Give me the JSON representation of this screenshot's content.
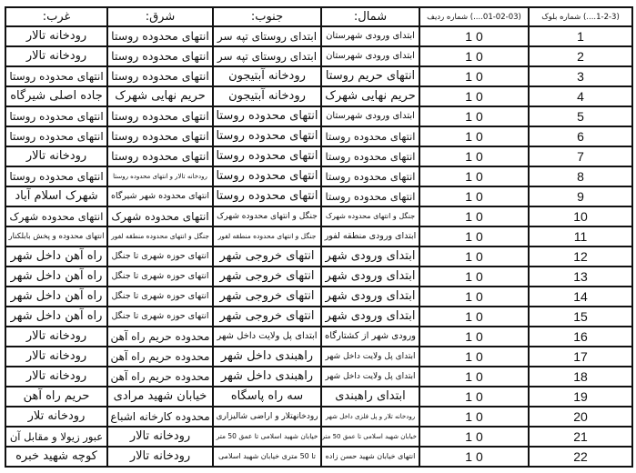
{
  "headers": {
    "block": "(1-2-3....) شماره بلوک",
    "row": "(01-02-03....) شماره ردیف",
    "north": "شمال:",
    "south": "جنوب:",
    "east": "شرق:",
    "west": "غرب:"
  },
  "rows": [
    {
      "block": "1",
      "row": "0 1",
      "north": "ابتدای ورودی شهرستان",
      "south": "ابتدای روستای تپه سر",
      "east": "انتهای محدوده روستا",
      "west": "رودخانه تالار"
    },
    {
      "block": "2",
      "row": "0 1",
      "north": "ابتدای ورودی شهرستان",
      "south": "ابتدای روستای تپه سر",
      "east": "انتهای محدوده روستا",
      "west": "رودخانه تالار"
    },
    {
      "block": "3",
      "row": "0 1",
      "north": "انتهای حریم روستا",
      "south": "رودخانه آبتیجون",
      "east": "انتهای محدوده روستا",
      "west": "انتهای محدوده روستا"
    },
    {
      "block": "4",
      "row": "0 1",
      "north": "حریم نهایی شهرک",
      "south": "رودخانه آبتیجون",
      "east": "حریم نهایی شهرک",
      "west": "جاده اصلی شیرگاه"
    },
    {
      "block": "5",
      "row": "0 1",
      "north": "ابتدای ورودی شهرستان",
      "south": "انتهای محدوده روستا",
      "east": "انتهای محدوده روستا",
      "west": "انتهای محدوده روستا"
    },
    {
      "block": "6",
      "row": "0 1",
      "north": "انتهای محدوده روستا",
      "south": "انتهای محدوده روستا",
      "east": "انتهای محدوده روستا",
      "west": "انتهای محدوده روستا"
    },
    {
      "block": "7",
      "row": "0 1",
      "north": "انتهای محدوده روستا",
      "south": "انتهای محدوده روستا",
      "east": "انتهای محدوده روستا",
      "west": "رودخانه تالار"
    },
    {
      "block": "8",
      "row": "0 1",
      "north": "انتهای محدوده روستا",
      "south": "انتهای محدوده روستا",
      "east": "رودخانه تالار و انتهای محدوده روستا",
      "west": "انتهای محدوده روستا"
    },
    {
      "block": "9",
      "row": "0 1",
      "north": "انتهای محدوده روستا",
      "south": "انتهای محدوده روستا",
      "east": "انتهای محدوده شهر شیرگاه",
      "west": "شهرک اسلام آباد"
    },
    {
      "block": "10",
      "row": "0 1",
      "north": "جنگل و انتهای محدوده شهرک",
      "south": "جنگل و انتهای محدوده شهرک",
      "east": "انتهای محدوده شهرک",
      "west": "انتهای محدوده شهرک"
    },
    {
      "block": "11",
      "row": "0 1",
      "north": "ابتدای ورودی منطقه لفور",
      "south": "جنگل و انتهای محدوده منطقه لفور",
      "east": "جنگل و انتهای محدوده منطقه لفور",
      "west": "انتهای محدوده و پخش بابلکنار"
    },
    {
      "block": "12",
      "row": "0 1",
      "north": "ابتدای ورودی شهر",
      "south": "انتهای خروجی شهر",
      "east": "انتهای حوزه شهری تا جنگل",
      "west": "راه آهن داخل شهر"
    },
    {
      "block": "13",
      "row": "0 1",
      "north": "ابتدای ورودی شهر",
      "south": "انتهای خروجی شهر",
      "east": "انتهای حوزه شهری تا جنگل",
      "west": "راه آهن داخل شهر"
    },
    {
      "block": "14",
      "row": "0 1",
      "north": "ابتدای ورودی شهر",
      "south": "انتهای خروجی شهر",
      "east": "انتهای حوزه شهری تا جنگل",
      "west": "راه آهن داخل شهر"
    },
    {
      "block": "15",
      "row": "0 1",
      "north": "ابتدای ورودی شهر",
      "south": "انتهای خروجی شهر",
      "east": "انتهای حوزه شهری تا جنگل",
      "west": "راه آهن داخل شهر"
    },
    {
      "block": "16",
      "row": "0 1",
      "north": "ورودی شهر از کشتارگاه",
      "south": "ابتدای پل ولایت داخل شهر",
      "east": "محدوده حریم راه آهن",
      "west": "رودخانه تالار"
    },
    {
      "block": "17",
      "row": "0 1",
      "north": "ابتدای پل ولایت داخل شهر",
      "south": "راهبندی داخل شهر",
      "east": "محدوده حریم راه آهن",
      "west": "رودخانه تالار"
    },
    {
      "block": "18",
      "row": "0 1",
      "north": "ابتدای پل ولایت داخل شهر",
      "south": "راهبندی داخل شهر",
      "east": "محدوده حریم راه آهن",
      "west": "رودخانه تالار"
    },
    {
      "block": "19",
      "row": "0 1",
      "north": "ابتدای راهبندی",
      "south": "سه راه پاسگاه",
      "east": "خیابان شهید مرادی",
      "west": "حریم راه آهن"
    },
    {
      "block": "20",
      "row": "0 1",
      "north": "رودخانه تلار و پل فلزی داخل شهر",
      "south": "رودخانهتلار و اراضی شالیزاری",
      "east": "محدوده کارخانه اشباع",
      "west": "رودخانه تلار"
    },
    {
      "block": "21",
      "row": "0 1",
      "north": "خیابان شهید اسلامی تا عمق 50 متر",
      "south": "خیابان شهید اسلامی تا عمق 50 متر",
      "east": "رودخانه تالار",
      "west": "عبور زیولا و مقابل آن"
    },
    {
      "block": "22",
      "row": "0 1",
      "north": "انتهای خیابان شهید حسن زاده",
      "south": "تا 50 متری خیابان شهید اسلامی",
      "east": "رودخانه تالار",
      "west": "کوچه شهید خبره"
    }
  ]
}
